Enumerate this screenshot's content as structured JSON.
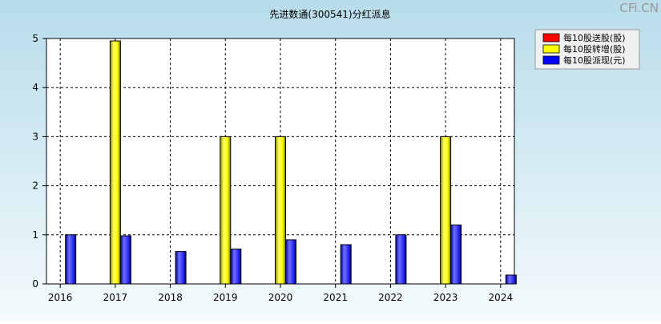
{
  "watermark": "CFi.CN",
  "chart_data": {
    "type": "bar",
    "title": "先进数通(300541)分红派息",
    "xlabel": "",
    "ylabel": "",
    "categories": [
      "2016",
      "2017",
      "2018",
      "2019",
      "2020",
      "2021",
      "2022",
      "2023",
      "2024"
    ],
    "ylim": [
      0,
      5
    ],
    "yticks": [
      "0",
      "1",
      "2",
      "3",
      "4",
      "5"
    ],
    "grid": true,
    "legend_position": "top-right",
    "series": [
      {
        "name": "每10股送股(股)",
        "color": "#ff0000",
        "values": [
          0,
          0,
          0,
          0,
          0,
          0,
          0,
          0,
          0
        ]
      },
      {
        "name": "每10股转增(股)",
        "color": "#ffff00",
        "values": [
          0,
          4.95,
          0,
          3,
          3,
          0,
          0,
          3,
          0
        ]
      },
      {
        "name": "每10股派现(元)",
        "color": "#0000ff",
        "values": [
          1.0,
          0.98,
          0.66,
          0.71,
          0.9,
          0.8,
          1.0,
          1.2,
          0.18
        ]
      }
    ]
  }
}
